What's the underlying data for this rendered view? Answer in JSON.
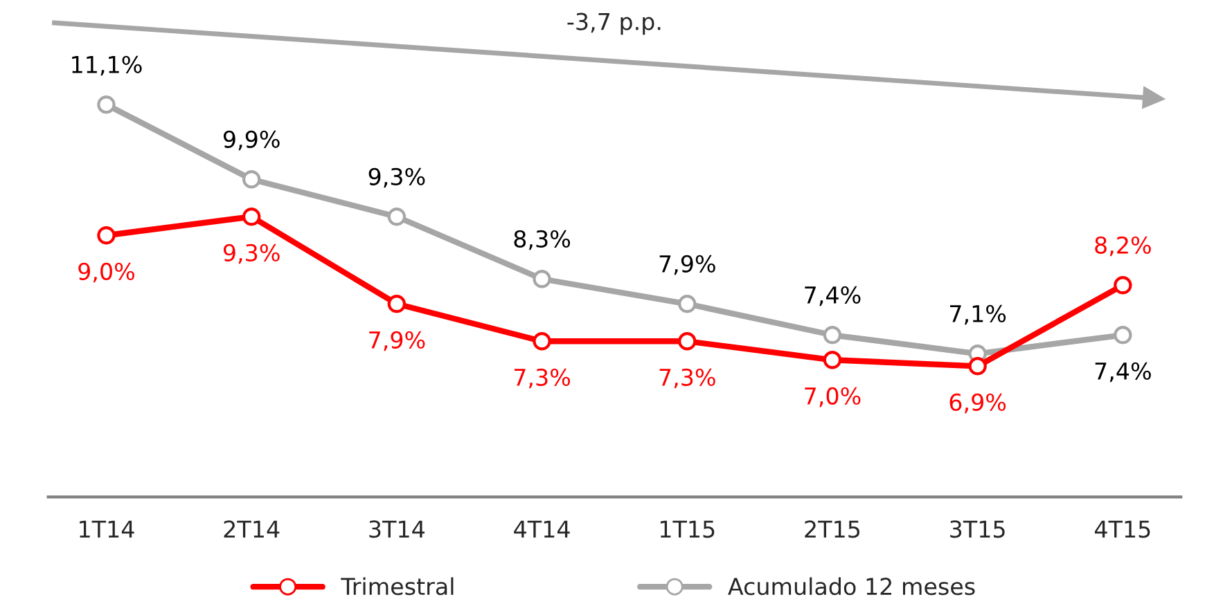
{
  "chart_data": {
    "type": "line",
    "categories": [
      "1T14",
      "2T14",
      "3T14",
      "4T14",
      "1T15",
      "2T15",
      "3T15",
      "4T15"
    ],
    "series": [
      {
        "name": "Trimestral",
        "color": "#ff0000",
        "values": [
          9.0,
          9.3,
          7.9,
          7.3,
          7.3,
          7.0,
          6.9,
          8.2
        ],
        "value_labels": [
          "9,0%",
          "9,3%",
          "7,9%",
          "7,3%",
          "7,3%",
          "7,0%",
          "6,9%",
          "8,2%"
        ]
      },
      {
        "name": "Acumulado 12 meses",
        "color": "#a6a6a6",
        "values": [
          11.1,
          9.9,
          9.3,
          8.3,
          7.9,
          7.4,
          7.1,
          7.4
        ],
        "value_labels": [
          "11,1%",
          "9,9%",
          "9,3%",
          "8,3%",
          "7,9%",
          "7,4%",
          "7,1%",
          "7,4%"
        ]
      }
    ],
    "annotations": [
      "-3,7 p.p."
    ],
    "marker": "circle",
    "line_style": "solid",
    "grid": false,
    "legend": "bottom",
    "tick_labels": "x"
  }
}
